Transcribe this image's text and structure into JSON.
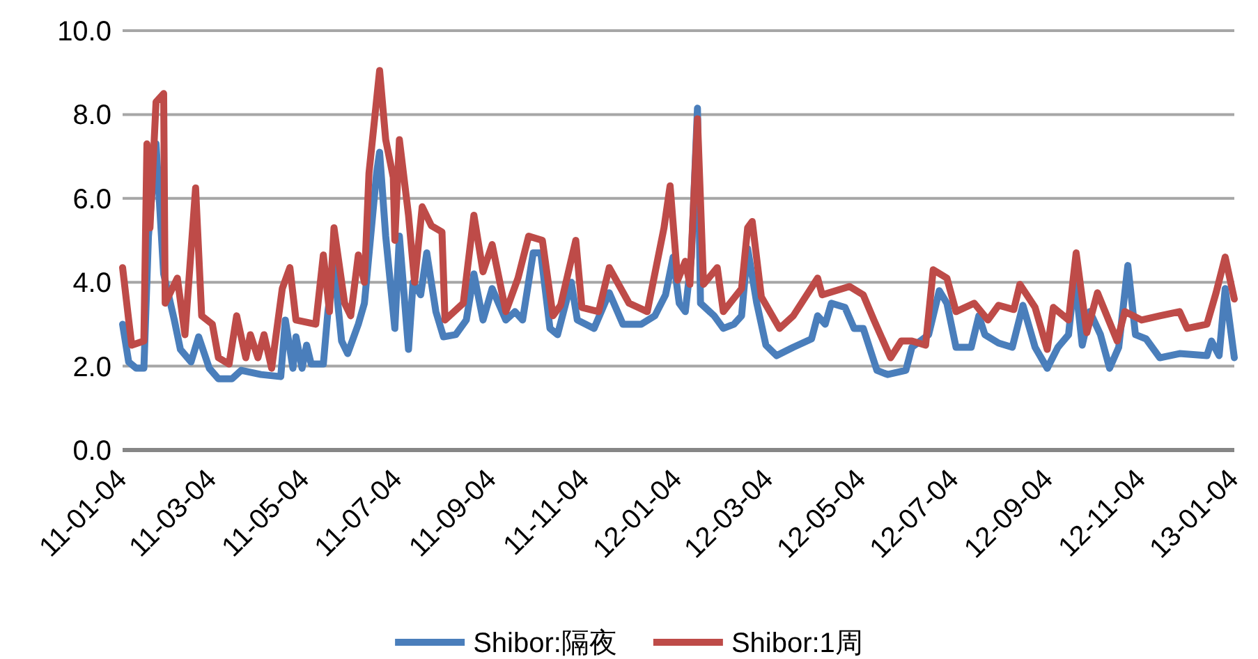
{
  "chart_data": {
    "type": "line",
    "xlim": [
      "2011-01-04",
      "2013-01-04"
    ],
    "xticks": [
      {
        "value": "2011-01-04",
        "label": "11-01-04"
      },
      {
        "value": "2011-03-04",
        "label": "11-03-04"
      },
      {
        "value": "2011-05-04",
        "label": "11-05-04"
      },
      {
        "value": "2011-07-04",
        "label": "11-07-04"
      },
      {
        "value": "2011-09-04",
        "label": "11-09-04"
      },
      {
        "value": "2011-11-04",
        "label": "11-11-04"
      },
      {
        "value": "2012-01-04",
        "label": "12-01-04"
      },
      {
        "value": "2012-03-04",
        "label": "12-03-04"
      },
      {
        "value": "2012-05-04",
        "label": "12-05-04"
      },
      {
        "value": "2012-07-04",
        "label": "12-07-04"
      },
      {
        "value": "2012-09-04",
        "label": "12-09-04"
      },
      {
        "value": "2012-11-04",
        "label": "12-11-04"
      },
      {
        "value": "2013-01-04",
        "label": "13-01-04"
      }
    ],
    "ylim": [
      0,
      10
    ],
    "yticks": [
      {
        "value": 0,
        "label": "0.0"
      },
      {
        "value": 2,
        "label": "2.0"
      },
      {
        "value": 4,
        "label": "4.0"
      },
      {
        "value": 6,
        "label": "6.0"
      },
      {
        "value": 8,
        "label": "8.0"
      },
      {
        "value": 10,
        "label": "10.0"
      }
    ],
    "grid": "y",
    "legend": "bottom",
    "series": [
      {
        "name": "Shibor:隔夜",
        "color": "#4a7ebb",
        "x": [
          "2011-01-04",
          "2011-01-08",
          "2011-01-13",
          "2011-01-18",
          "2011-01-21",
          "2011-01-26",
          "2011-01-31",
          "2011-02-07",
          "2011-02-11",
          "2011-02-18",
          "2011-02-23",
          "2011-03-02",
          "2011-03-08",
          "2011-03-17",
          "2011-03-23",
          "2011-04-05",
          "2011-04-18",
          "2011-04-21",
          "2011-04-26",
          "2011-04-28",
          "2011-05-02",
          "2011-05-05",
          "2011-05-08",
          "2011-05-16",
          "2011-05-19",
          "2011-05-23",
          "2011-05-28",
          "2011-06-01",
          "2011-06-08",
          "2011-06-12",
          "2011-06-20",
          "2011-06-22",
          "2011-06-26",
          "2011-07-02",
          "2011-07-05",
          "2011-07-11",
          "2011-07-14",
          "2011-07-19",
          "2011-07-23",
          "2011-07-29",
          "2011-08-03",
          "2011-08-11",
          "2011-08-18",
          "2011-08-23",
          "2011-08-29",
          "2011-09-04",
          "2011-09-13",
          "2011-09-19",
          "2011-09-24",
          "2011-10-01",
          "2011-10-06",
          "2011-10-12",
          "2011-10-17",
          "2011-10-26",
          "2011-10-30",
          "2011-11-10",
          "2011-11-20",
          "2011-11-29",
          "2011-12-11",
          "2011-12-20",
          "2011-12-27",
          "2012-01-01",
          "2012-01-05",
          "2012-01-09",
          "2012-01-13",
          "2012-01-17",
          "2012-01-19",
          "2012-01-28",
          "2012-02-03",
          "2012-02-10",
          "2012-02-15",
          "2012-02-19",
          "2012-02-25",
          "2012-03-02",
          "2012-03-09",
          "2012-03-20",
          "2012-04-01",
          "2012-04-05",
          "2012-04-10",
          "2012-04-14",
          "2012-04-23",
          "2012-04-29",
          "2012-05-05",
          "2012-05-14",
          "2012-05-21",
          "2012-06-02",
          "2012-06-06",
          "2012-06-17",
          "2012-06-24",
          "2012-06-29",
          "2012-07-05",
          "2012-07-15",
          "2012-07-20",
          "2012-07-24",
          "2012-08-02",
          "2012-08-11",
          "2012-08-18",
          "2012-08-26",
          "2012-09-03",
          "2012-09-10",
          "2012-09-17",
          "2012-09-21",
          "2012-09-26",
          "2012-10-01",
          "2012-10-08",
          "2012-10-14",
          "2012-10-20",
          "2012-10-26",
          "2012-10-31",
          "2012-11-07",
          "2012-11-16",
          "2012-11-29",
          "2012-12-17",
          "2012-12-20",
          "2012-12-25",
          "2012-12-29",
          "2013-01-04"
        ],
        "values": [
          3.0,
          2.1,
          1.95,
          1.95,
          5.1,
          7.3,
          4.2,
          3.1,
          2.4,
          2.1,
          2.7,
          1.95,
          1.7,
          1.7,
          1.9,
          1.8,
          1.75,
          3.1,
          1.95,
          2.7,
          1.95,
          2.5,
          2.05,
          2.05,
          3.3,
          4.4,
          2.6,
          2.3,
          3.0,
          3.5,
          6.6,
          7.1,
          5.1,
          2.9,
          5.1,
          2.4,
          4.0,
          3.7,
          4.7,
          3.3,
          2.7,
          2.75,
          3.1,
          4.2,
          3.1,
          3.85,
          3.1,
          3.3,
          3.1,
          4.7,
          4.7,
          2.9,
          2.75,
          4.0,
          3.1,
          2.9,
          3.75,
          3.0,
          3.0,
          3.2,
          3.7,
          4.6,
          3.5,
          3.3,
          4.6,
          8.15,
          3.5,
          3.2,
          2.9,
          3.0,
          3.2,
          4.8,
          3.5,
          2.5,
          2.25,
          2.45,
          2.65,
          3.2,
          3.0,
          3.5,
          3.4,
          2.9,
          2.9,
          1.9,
          1.8,
          1.9,
          2.45,
          2.75,
          3.8,
          3.5,
          2.45,
          2.45,
          3.2,
          2.75,
          2.55,
          2.45,
          3.45,
          2.45,
          1.95,
          2.45,
          2.75,
          4.15,
          2.5,
          3.3,
          2.75,
          1.95,
          2.45,
          4.4,
          2.75,
          2.65,
          2.2,
          2.3,
          2.25,
          2.6,
          2.25,
          3.85,
          2.2
        ]
      },
      {
        "name": "Shibor:1周",
        "color": "#be4b48",
        "x": [
          "2011-01-04",
          "2011-01-08",
          "2011-01-10",
          "2011-01-18",
          "2011-01-20",
          "2011-01-22",
          "2011-01-26",
          "2011-01-31",
          "2011-02-01",
          "2011-02-09",
          "2011-02-14",
          "2011-02-21",
          "2011-02-25",
          "2011-03-04",
          "2011-03-08",
          "2011-03-15",
          "2011-03-20",
          "2011-03-26",
          "2011-03-29",
          "2011-04-03",
          "2011-04-07",
          "2011-04-12",
          "2011-04-19",
          "2011-04-24",
          "2011-04-28",
          "2011-05-11",
          "2011-05-16",
          "2011-05-20",
          "2011-05-23",
          "2011-05-30",
          "2011-06-03",
          "2011-06-08",
          "2011-06-12",
          "2011-06-15",
          "2011-06-22",
          "2011-06-26",
          "2011-07-01",
          "2011-07-02",
          "2011-07-05",
          "2011-07-11",
          "2011-07-15",
          "2011-07-20",
          "2011-07-26",
          "2011-08-02",
          "2011-08-04",
          "2011-08-16",
          "2011-08-23",
          "2011-08-29",
          "2011-09-04",
          "2011-09-13",
          "2011-09-21",
          "2011-09-28",
          "2011-10-07",
          "2011-10-14",
          "2011-10-19",
          "2011-10-29",
          "2011-11-02",
          "2011-11-13",
          "2011-11-20",
          "2011-12-03",
          "2011-12-15",
          "2011-12-26",
          "2011-12-30",
          "2012-01-04",
          "2012-01-09",
          "2012-01-12",
          "2012-01-17",
          "2012-01-21",
          "2012-01-30",
          "2012-02-03",
          "2012-02-15",
          "2012-02-19",
          "2012-02-22",
          "2012-02-28",
          "2012-03-11",
          "2012-03-20",
          "2012-04-05",
          "2012-04-08",
          "2012-04-26",
          "2012-05-05",
          "2012-05-12",
          "2012-05-23",
          "2012-05-30",
          "2012-06-06",
          "2012-06-15",
          "2012-06-20",
          "2012-06-29",
          "2012-07-05",
          "2012-07-17",
          "2012-07-26",
          "2012-08-02",
          "2012-08-12",
          "2012-08-16",
          "2012-08-26",
          "2012-09-03",
          "2012-09-07",
          "2012-09-17",
          "2012-09-22",
          "2012-09-29",
          "2012-10-06",
          "2012-10-19",
          "2012-10-24",
          "2012-11-04",
          "2012-11-16",
          "2012-11-29",
          "2012-12-04",
          "2012-12-17",
          "2012-12-23",
          "2012-12-29",
          "2013-01-04"
        ],
        "values": [
          4.35,
          3.1,
          2.5,
          2.6,
          7.3,
          5.3,
          8.3,
          8.5,
          3.5,
          4.1,
          2.75,
          6.25,
          3.2,
          3.0,
          2.2,
          2.05,
          3.2,
          2.2,
          2.75,
          2.2,
          2.75,
          1.95,
          3.85,
          4.35,
          3.1,
          3.0,
          4.65,
          3.3,
          5.3,
          3.5,
          3.2,
          4.65,
          4.0,
          6.6,
          9.05,
          7.4,
          6.5,
          5.0,
          7.4,
          5.6,
          4.0,
          5.8,
          5.35,
          5.2,
          3.1,
          3.5,
          5.6,
          4.25,
          4.9,
          3.3,
          4.1,
          5.1,
          5.0,
          3.2,
          3.45,
          5.0,
          3.4,
          3.3,
          4.35,
          3.5,
          3.3,
          5.3,
          6.3,
          4.05,
          4.5,
          3.95,
          7.9,
          3.95,
          4.35,
          3.3,
          3.85,
          5.3,
          5.45,
          3.65,
          2.9,
          3.2,
          4.1,
          3.7,
          3.9,
          3.7,
          3.1,
          2.2,
          2.6,
          2.6,
          2.5,
          4.3,
          4.1,
          3.3,
          3.5,
          3.1,
          3.45,
          3.35,
          3.95,
          3.4,
          2.4,
          3.4,
          3.1,
          4.7,
          2.8,
          3.75,
          2.6,
          3.3,
          3.1,
          3.2,
          3.3,
          2.9,
          3.0,
          3.75,
          4.6,
          3.6
        ]
      }
    ]
  }
}
